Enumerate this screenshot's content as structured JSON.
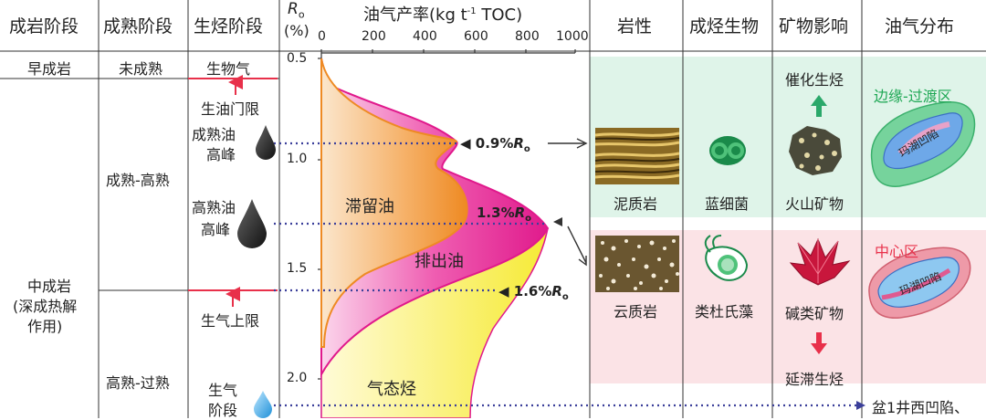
{
  "headers": {
    "diagenesis": "成岩阶段",
    "maturity": "成熟阶段",
    "hydrocarbon": "生烃阶段",
    "ro_symbol": "R",
    "ro_sub": "o",
    "ro_unit": "(%)",
    "yield_title": "油气产率(kg t",
    "yield_sup": "-1",
    "yield_tail": " TOC)",
    "lithology": "岩性",
    "organism": "成烃生物",
    "mineral": "矿物影响",
    "distribution": "油气分布"
  },
  "yield_axis_ticks": [
    "0",
    "200",
    "400",
    "600",
    "800",
    "1000"
  ],
  "ro_axis_ticks": [
    "0.5",
    "1.0",
    "1.5",
    "2.0"
  ],
  "diagenesis_col": {
    "early": "早成岩",
    "middle_line1": "中成岩",
    "middle_line2": "(深成热解",
    "middle_line3": "作用)"
  },
  "maturity_col": {
    "immature": "未成熟",
    "mature_high": "成熟-高熟",
    "high_over": "高熟-过熟"
  },
  "hydrocarbon_col": {
    "biogas": "生物气",
    "oil_threshold": "生油门限",
    "mature_oil_peak_1": "成熟油",
    "mature_oil_peak_2": "高峰",
    "high_oil_peak_1": "高熟油",
    "high_oil_peak_2": "高峰",
    "gas_limit": "生气上限",
    "gas_stage_1": "生气",
    "gas_stage_2": "阶段"
  },
  "curve_labels": {
    "retained_oil": "滞留油",
    "expelled_oil": "排出油",
    "gaseous_hc": "气态烃",
    "ro_09": "◀ 0.9%",
    "ro_13": "1.3%",
    "ro_16": "◀ 1.6%",
    "ro_r": "R",
    "ro_o": "o"
  },
  "lithology_col": {
    "mudstone": "泥质岩",
    "dolomitic": "云质岩"
  },
  "organism_col": {
    "cyanobacteria": "蓝细菌",
    "dinoflagellate": "类杜氏藻"
  },
  "mineral_col": {
    "catalysis": "催化生烃",
    "volcanic": "火山矿物",
    "alkali": "碱类矿物",
    "delayed": "延滞生烃"
  },
  "distribution_col": {
    "margin": "边缘-过渡区",
    "center": "中心区",
    "lake_sag": "玛湖凹陷",
    "pen1": "盆1井西凹陷、"
  },
  "colors": {
    "retained_oil": "#f0902a",
    "expelled_oil": "#e0198c",
    "gaseous": "#f7ee3a",
    "green_band": "#dff4e9",
    "pink_band": "#fbe3e6",
    "dotted_line": "#3b3f9a",
    "accent_red": "#e8304a",
    "accent_green": "#1fa855"
  }
}
